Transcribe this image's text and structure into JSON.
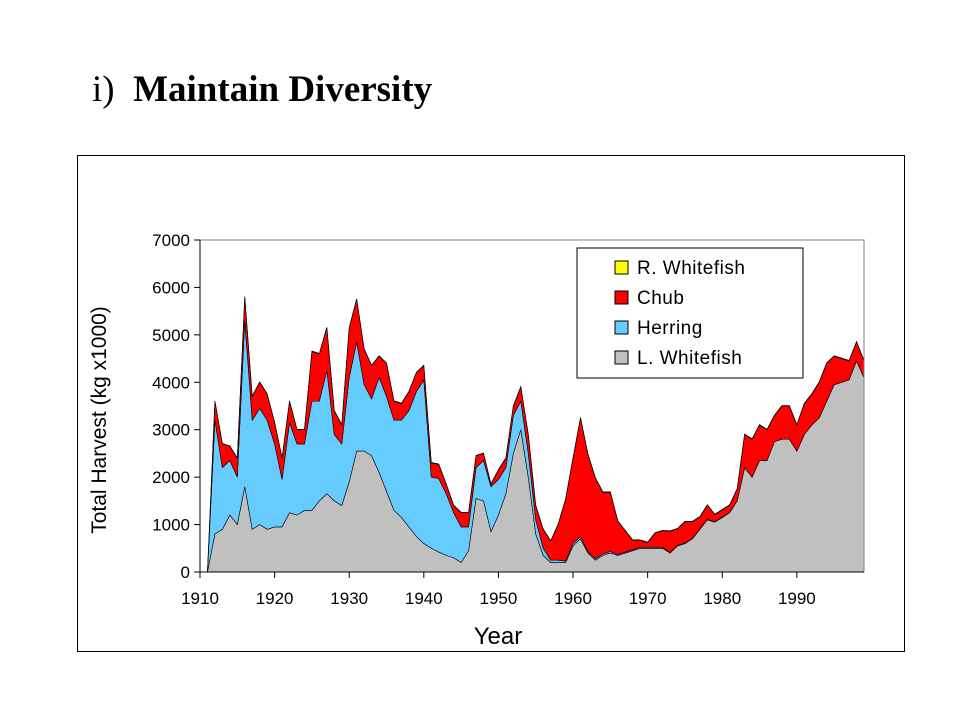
{
  "slide": {
    "number": "i)",
    "title": "Maintain Diversity"
  },
  "chart_data": {
    "type": "area",
    "stacked": true,
    "title": "",
    "xlabel": "Year",
    "ylabel": "Total Harvest (kg x1000)",
    "xlim": [
      1910,
      1999
    ],
    "ylim": [
      0,
      7000
    ],
    "xticks": [
      1910,
      1920,
      1930,
      1940,
      1950,
      1960,
      1970,
      1980,
      1990
    ],
    "yticks": [
      0,
      1000,
      2000,
      3000,
      4000,
      5000,
      6000,
      7000
    ],
    "legend_position": "top-right",
    "grid": false,
    "x": [
      1911,
      1912,
      1913,
      1914,
      1915,
      1916,
      1917,
      1918,
      1919,
      1920,
      1921,
      1922,
      1923,
      1924,
      1925,
      1926,
      1927,
      1928,
      1929,
      1930,
      1931,
      1932,
      1933,
      1934,
      1935,
      1936,
      1937,
      1938,
      1939,
      1940,
      1941,
      1942,
      1943,
      1944,
      1945,
      1946,
      1947,
      1948,
      1949,
      1950,
      1951,
      1952,
      1953,
      1954,
      1955,
      1956,
      1957,
      1958,
      1959,
      1960,
      1961,
      1962,
      1963,
      1964,
      1965,
      1966,
      1967,
      1968,
      1969,
      1970,
      1971,
      1972,
      1973,
      1974,
      1975,
      1976,
      1977,
      1978,
      1979,
      1980,
      1981,
      1982,
      1983,
      1984,
      1985,
      1986,
      1987,
      1988,
      1989,
      1990,
      1991,
      1992,
      1993,
      1994,
      1995,
      1996,
      1997,
      1998,
      1999
    ],
    "series": [
      {
        "name": "L. Whitefish",
        "color": "#C0C0C0",
        "values": [
          0,
          800,
          900,
          1200,
          1000,
          1800,
          900,
          1000,
          900,
          950,
          950,
          1250,
          1200,
          1300,
          1300,
          1500,
          1650,
          1500,
          1400,
          1900,
          2550,
          2550,
          2450,
          2100,
          1700,
          1300,
          1150,
          950,
          750,
          600,
          500,
          420,
          350,
          300,
          200,
          450,
          1550,
          1500,
          850,
          1200,
          1650,
          2500,
          3000,
          2000,
          800,
          350,
          200,
          200,
          200,
          550,
          700,
          400,
          250,
          350,
          400,
          350,
          400,
          450,
          500,
          500,
          500,
          500,
          400,
          550,
          600,
          700,
          900,
          1100,
          1050,
          1150,
          1250,
          1500,
          2200,
          2000,
          2350,
          2350,
          2750,
          2800,
          2800,
          2550,
          2900,
          3100,
          3250,
          3600,
          3950,
          4000,
          4050,
          4450,
          4100
        ]
      },
      {
        "name": "Herring",
        "color": "#66CCFF",
        "values": [
          0,
          2400,
          1300,
          1150,
          1000,
          3500,
          2300,
          2450,
          2300,
          1750,
          1000,
          1900,
          1500,
          1400,
          2300,
          2100,
          2600,
          1400,
          1300,
          2200,
          2300,
          1400,
          1200,
          2000,
          2000,
          1900,
          2050,
          2450,
          3050,
          3450,
          1500,
          1550,
          1300,
          950,
          750,
          500,
          650,
          850,
          950,
          750,
          550,
          800,
          600,
          500,
          300,
          150,
          50,
          50,
          30,
          50,
          50,
          30,
          30,
          30,
          30,
          20,
          20,
          20,
          20,
          20,
          20,
          20,
          10,
          10,
          10,
          10,
          10,
          10,
          10,
          10,
          10,
          0,
          0,
          0,
          0,
          0,
          0,
          0,
          0,
          0,
          0,
          0,
          0,
          0,
          0,
          0,
          0,
          0,
          0
        ]
      },
      {
        "name": "Chub",
        "color": "#FF0000",
        "values": [
          0,
          400,
          500,
          300,
          400,
          500,
          500,
          550,
          550,
          450,
          450,
          450,
          300,
          300,
          1050,
          1000,
          900,
          500,
          400,
          1050,
          900,
          750,
          700,
          450,
          700,
          400,
          350,
          400,
          400,
          300,
          300,
          300,
          200,
          150,
          300,
          300,
          250,
          150,
          50,
          200,
          200,
          200,
          300,
          400,
          300,
          400,
          400,
          750,
          1300,
          1800,
          2500,
          2050,
          1700,
          1300,
          1250,
          700,
          450,
          200,
          150,
          100,
          300,
          350,
          450,
          350,
          450,
          350,
          250,
          300,
          150,
          150,
          150,
          250,
          700,
          800,
          750,
          650,
          550,
          700,
          700,
          550,
          650,
          650,
          750,
          800,
          600,
          500,
          400,
          400,
          350
        ]
      },
      {
        "name": "R. Whitefish",
        "color": "#FFFF00",
        "values": [
          0,
          10,
          10,
          10,
          10,
          10,
          10,
          10,
          10,
          10,
          10,
          10,
          10,
          10,
          10,
          10,
          10,
          10,
          10,
          10,
          10,
          10,
          10,
          10,
          10,
          10,
          10,
          10,
          10,
          10,
          10,
          10,
          10,
          10,
          10,
          10,
          10,
          10,
          10,
          10,
          10,
          10,
          10,
          10,
          10,
          10,
          10,
          10,
          10,
          10,
          10,
          10,
          10,
          10,
          10,
          10,
          10,
          10,
          10,
          10,
          10,
          10,
          10,
          10,
          10,
          10,
          10,
          10,
          10,
          10,
          10,
          10,
          10,
          10,
          10,
          10,
          10,
          10,
          10,
          10,
          10,
          10,
          10,
          10,
          10,
          10,
          10,
          10,
          10
        ]
      }
    ],
    "legend_order": [
      "R. Whitefish",
      "Chub",
      "Herring",
      "L. Whitefish"
    ]
  }
}
